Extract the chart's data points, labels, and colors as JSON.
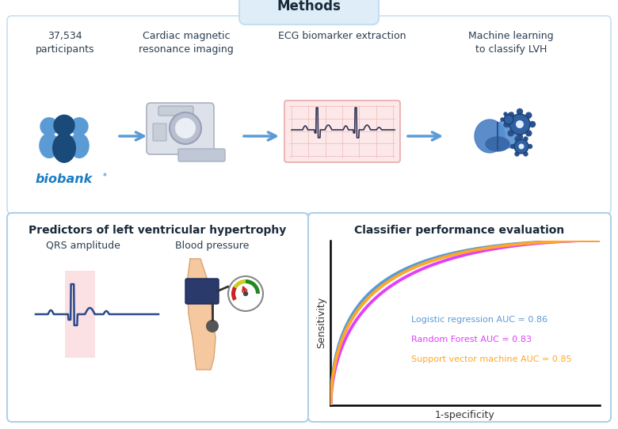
{
  "background_color": "#4eaad8",
  "title": "Methods",
  "top_labels": [
    "37,534\nparticipants",
    "Cardiac magnetic\nresonance imaging",
    "ECG biomarker extraction",
    "Machine learning\nto classify LVH"
  ],
  "bottom_left_title": "Predictors of left ventricular hypertrophy",
  "bottom_right_title": "Classifier performance evaluation",
  "qrs_label": "QRS amplitude",
  "bp_label": "Blood pressure",
  "roc_ylabel": "Sensitivity",
  "roc_xlabel": "1-specificity",
  "legend_entries": [
    {
      "label": "Logistic regression AUC = 0.86",
      "color": "#5b9bd5",
      "auc": 0.86
    },
    {
      "label": "Random Forest AUC = 0.83",
      "color": "#e040fb",
      "auc": 0.83
    },
    {
      "label": "Support vector machine AUC = 0.85",
      "color": "#ffa726",
      "auc": 0.85
    }
  ],
  "arrow_color": "#5b9bd5",
  "biobank_text_color": "#1a7dc4",
  "people_light": "#5b9bd5",
  "people_dark": "#1a4a7a",
  "ecg_color": "#333355",
  "qrs_wave_color": "#2a4a8a"
}
